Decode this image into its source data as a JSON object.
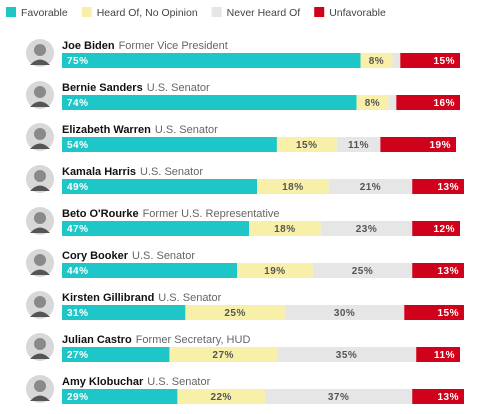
{
  "chart_data": {
    "type": "bar",
    "orientation": "horizontal",
    "stacked": true,
    "categories": [
      "Joe Biden",
      "Bernie Sanders",
      "Elizabeth Warren",
      "Kamala Harris",
      "Beto O'Rourke",
      "Cory Booker",
      "Kirsten Gillibrand",
      "Julian Castro",
      "Amy Klobuchar"
    ],
    "category_descriptions": [
      "Former Vice President",
      "U.S. Senator",
      "U.S. Senator",
      "U.S. Senator",
      "Former U.S. Representative",
      "U.S. Senator",
      "U.S. Senator",
      "Former Secretary, HUD",
      "U.S. Senator"
    ],
    "series": [
      {
        "name": "Favorable",
        "color": "#1ec6c8",
        "label_color": "#ffffff",
        "values": [
          75,
          74,
          54,
          49,
          47,
          44,
          31,
          27,
          29
        ],
        "value_labels": [
          "75%",
          "74%",
          "54%",
          "49%",
          "47%",
          "44%",
          "31%",
          "27%",
          "29%"
        ]
      },
      {
        "name": "Heard Of, No Opinion",
        "color": "#f8f0a9",
        "label_color": "#555555",
        "values": [
          8,
          8,
          15,
          18,
          18,
          19,
          25,
          27,
          22
        ],
        "value_labels": [
          "8%",
          "8%",
          "15%",
          "18%",
          "18%",
          "19%",
          "25%",
          "27%",
          "22%"
        ]
      },
      {
        "name": "Never Heard Of",
        "color": "#e6e6e6",
        "label_color": "#555555",
        "values": [
          2,
          2,
          11,
          21,
          23,
          25,
          30,
          35,
          37
        ],
        "value_labels": [
          null,
          null,
          "11%",
          "21%",
          "23%",
          "25%",
          "30%",
          "35%",
          "37%"
        ]
      },
      {
        "name": "Unfavorable",
        "color": "#d0021b",
        "label_color": "#ffffff",
        "values": [
          15,
          16,
          19,
          13,
          12,
          13,
          15,
          11,
          13
        ],
        "value_labels": [
          "15%",
          "16%",
          "19%",
          "13%",
          "12%",
          "13%",
          "15%",
          "11%",
          "13%"
        ]
      }
    ]
  }
}
